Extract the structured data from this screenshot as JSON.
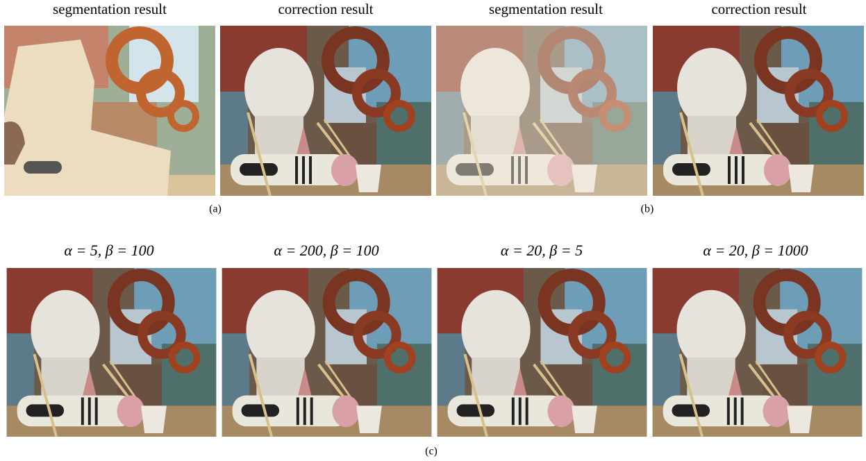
{
  "panels": [
    {
      "images": [
        {
          "title": "segmentation result"
        },
        {
          "title": "correction result"
        }
      ],
      "caption": "(a)"
    },
    {
      "images": [
        {
          "title": "segmentation result"
        },
        {
          "title": "correction result"
        }
      ],
      "caption": "(b)"
    },
    {
      "images": [
        {
          "title": "α = 5, β = 100"
        },
        {
          "title": "α = 200, β = 100"
        },
        {
          "title": "α = 20, β = 5"
        },
        {
          "title": "α = 20, β = 1000"
        }
      ],
      "caption": "(c)"
    }
  ]
}
